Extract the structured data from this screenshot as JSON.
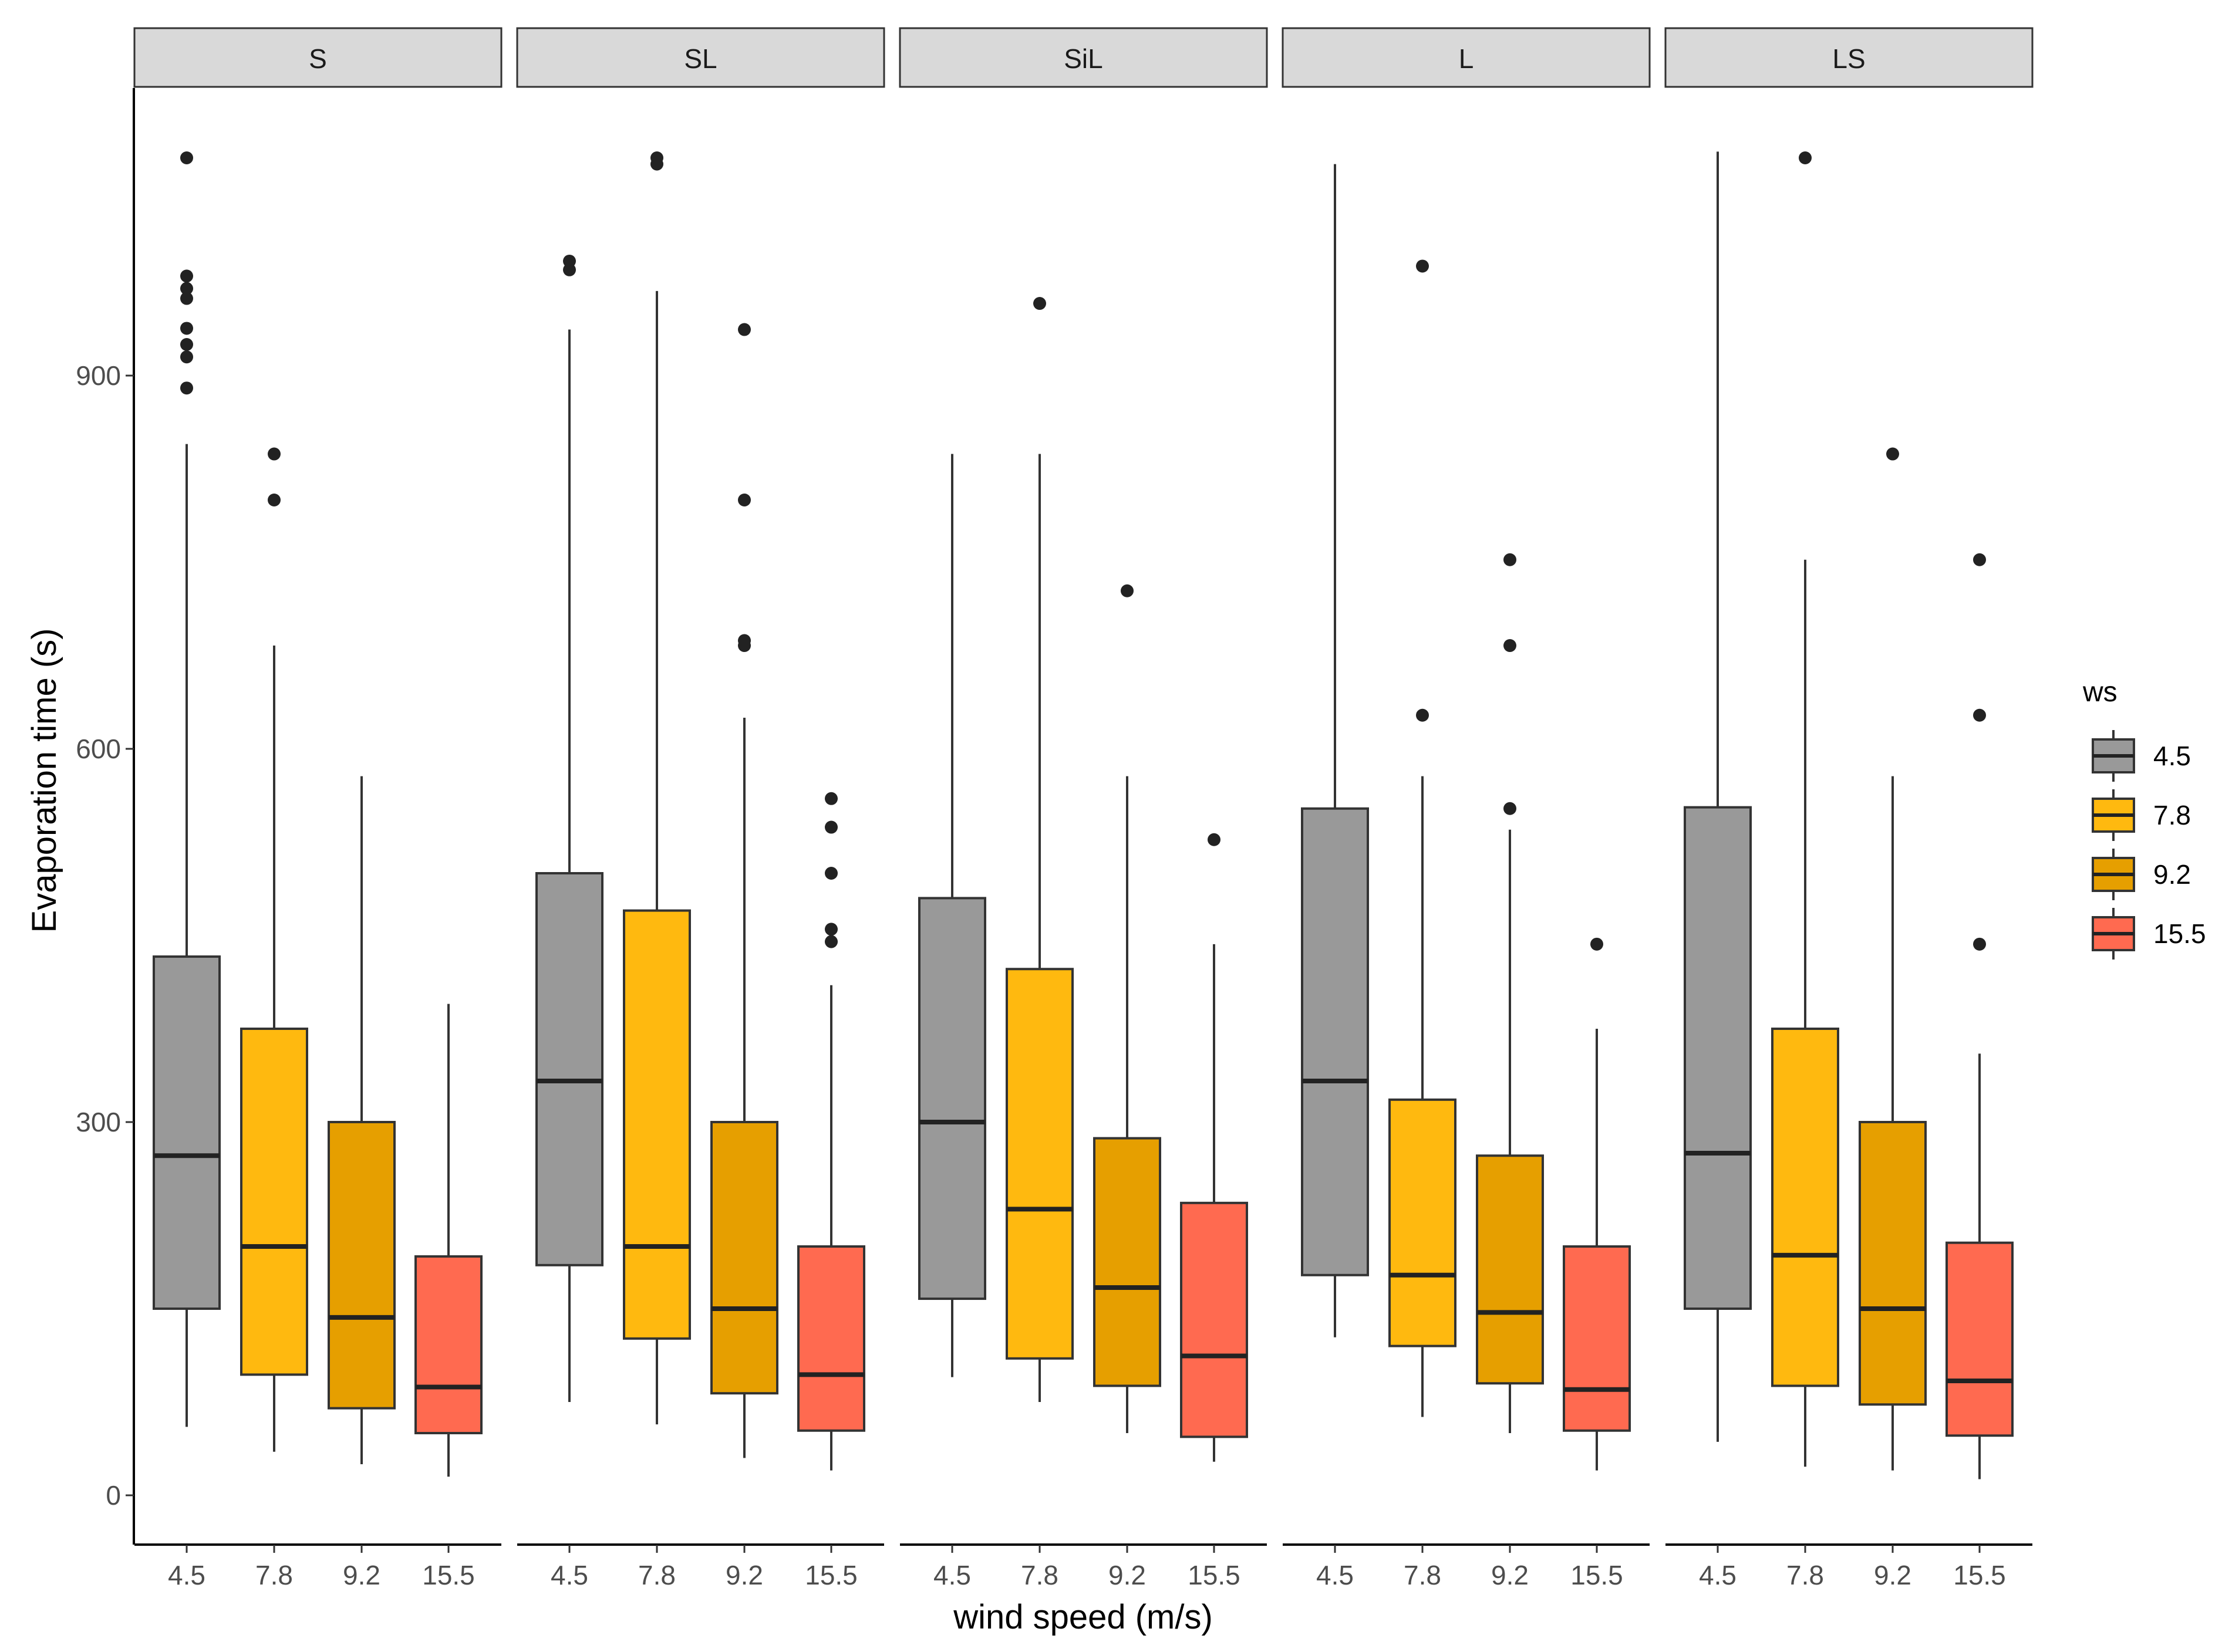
{
  "chart_data": {
    "type": "boxplot",
    "facets": [
      "S",
      "SL",
      "SiL",
      "L",
      "LS"
    ],
    "categories": [
      "4.5",
      "7.8",
      "9.2",
      "15.5"
    ],
    "xlabel": "wind speed (m/s)",
    "ylabel": "Evaporation time (s)",
    "yticks": [
      0,
      300,
      600,
      900
    ],
    "ylim": [
      -40,
      1130
    ],
    "legend": {
      "title": "ws",
      "placement": "right",
      "entries": [
        {
          "label": "4.5",
          "color": "#999999"
        },
        {
          "label": "7.8",
          "color": "#FFB90F"
        },
        {
          "label": "9.2",
          "color": "#E69F00"
        },
        {
          "label": "15.5",
          "color": "#FF6A50"
        }
      ]
    },
    "series": [
      {
        "facet": "S",
        "boxes": [
          {
            "ws": "4.5",
            "lower_whisker": 55,
            "q1": 150,
            "median": 273,
            "q3": 433,
            "upper_whisker": 845,
            "outliers": [
              890,
              915,
              925,
              938,
              962,
              970,
              980,
              1075
            ]
          },
          {
            "ws": "7.8",
            "lower_whisker": 35,
            "q1": 97,
            "median": 200,
            "q3": 375,
            "upper_whisker": 683,
            "outliers": [
              800,
              837
            ]
          },
          {
            "ws": "9.2",
            "lower_whisker": 25,
            "q1": 70,
            "median": 143,
            "q3": 300,
            "upper_whisker": 578,
            "outliers": []
          },
          {
            "ws": "15.5",
            "lower_whisker": 15,
            "q1": 50,
            "median": 87,
            "q3": 192,
            "upper_whisker": 395,
            "outliers": []
          }
        ]
      },
      {
        "facet": "SL",
        "boxes": [
          {
            "ws": "4.5",
            "lower_whisker": 75,
            "q1": 185,
            "median": 333,
            "q3": 500,
            "upper_whisker": 937,
            "outliers": [
              985,
              992
            ]
          },
          {
            "ws": "7.8",
            "lower_whisker": 57,
            "q1": 126,
            "median": 200,
            "q3": 470,
            "upper_whisker": 968,
            "outliers": [
              1070,
              1075
            ]
          },
          {
            "ws": "9.2",
            "lower_whisker": 30,
            "q1": 82,
            "median": 150,
            "q3": 300,
            "upper_whisker": 625,
            "outliers": [
              683,
              687,
              800,
              937
            ]
          },
          {
            "ws": "15.5",
            "lower_whisker": 20,
            "q1": 52,
            "median": 97,
            "q3": 200,
            "upper_whisker": 410,
            "outliers": [
              445,
              455,
              500,
              537,
              560
            ]
          }
        ]
      },
      {
        "facet": "SiL",
        "boxes": [
          {
            "ws": "4.5",
            "lower_whisker": 95,
            "q1": 158,
            "median": 300,
            "q3": 480,
            "upper_whisker": 837,
            "outliers": []
          },
          {
            "ws": "7.8",
            "lower_whisker": 75,
            "q1": 110,
            "median": 230,
            "q3": 423,
            "upper_whisker": 837,
            "outliers": [
              958
            ]
          },
          {
            "ws": "9.2",
            "lower_whisker": 50,
            "q1": 88,
            "median": 167,
            "q3": 287,
            "upper_whisker": 578,
            "outliers": [
              727
            ]
          },
          {
            "ws": "15.5",
            "lower_whisker": 27,
            "q1": 47,
            "median": 112,
            "q3": 235,
            "upper_whisker": 443,
            "outliers": [
              527
            ]
          }
        ]
      },
      {
        "facet": "L",
        "boxes": [
          {
            "ws": "4.5",
            "lower_whisker": 127,
            "q1": 177,
            "median": 333,
            "q3": 552,
            "upper_whisker": 1070,
            "outliers": []
          },
          {
            "ws": "7.8",
            "lower_whisker": 63,
            "q1": 120,
            "median": 177,
            "q3": 318,
            "upper_whisker": 578,
            "outliers": [
              627,
              988
            ]
          },
          {
            "ws": "9.2",
            "lower_whisker": 50,
            "q1": 90,
            "median": 147,
            "q3": 273,
            "upper_whisker": 535,
            "outliers": [
              552,
              683,
              752
            ]
          },
          {
            "ws": "15.5",
            "lower_whisker": 20,
            "q1": 52,
            "median": 85,
            "q3": 200,
            "upper_whisker": 375,
            "outliers": [
              443
            ]
          }
        ]
      },
      {
        "facet": "LS",
        "boxes": [
          {
            "ws": "4.5",
            "lower_whisker": 43,
            "q1": 150,
            "median": 275,
            "q3": 553,
            "upper_whisker": 1080,
            "outliers": []
          },
          {
            "ws": "7.8",
            "lower_whisker": 23,
            "q1": 88,
            "median": 193,
            "q3": 375,
            "upper_whisker": 752,
            "outliers": [
              1075
            ]
          },
          {
            "ws": "9.2",
            "lower_whisker": 20,
            "q1": 73,
            "median": 150,
            "q3": 300,
            "upper_whisker": 578,
            "outliers": [
              837
            ]
          },
          {
            "ws": "15.5",
            "lower_whisker": 13,
            "q1": 48,
            "median": 92,
            "q3": 203,
            "upper_whisker": 355,
            "outliers": [
              443,
              627,
              752
            ]
          }
        ]
      }
    ]
  }
}
